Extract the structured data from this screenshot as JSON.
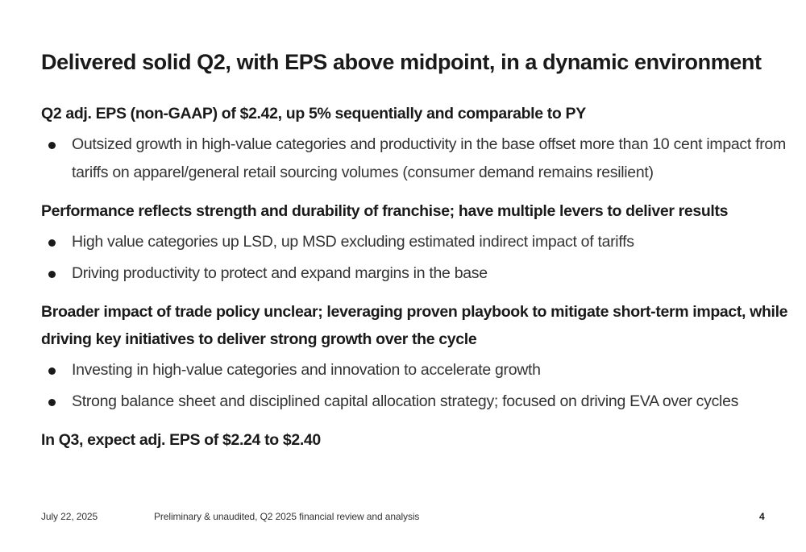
{
  "slide": {
    "title": "Delivered solid Q2, with EPS above midpoint, in a dynamic environment",
    "sections": [
      {
        "heading": "Q2 adj. EPS (non-GAAP) of $2.42, up 5% sequentially and comparable to PY",
        "bullets": [
          "Outsized growth in high-value categories and productivity in the base offset more than 10 cent impact from tariffs on apparel/general retail sourcing volumes (consumer demand remains resilient)"
        ]
      },
      {
        "heading": "Performance reflects strength and durability of franchise; have multiple levers to deliver results",
        "bullets": [
          "High value categories up LSD, up MSD excluding estimated indirect impact of tariffs",
          "Driving productivity to protect and expand margins in the base"
        ]
      },
      {
        "heading": "Broader impact of trade policy unclear; leveraging proven playbook to mitigate short-term impact, while driving key initiatives to deliver strong growth over the cycle",
        "bullets": [
          "Investing in high-value categories and innovation to accelerate growth",
          "Strong balance sheet and disciplined capital allocation strategy; focused on driving EVA over cycles"
        ]
      },
      {
        "heading": "In Q3, expect adj. EPS of $2.24 to $2.40",
        "bullets": []
      }
    ]
  },
  "footer": {
    "date": "July 22, 2025",
    "note": "Preliminary & unaudited, Q2 2025 financial review and analysis",
    "page_number": "4"
  }
}
